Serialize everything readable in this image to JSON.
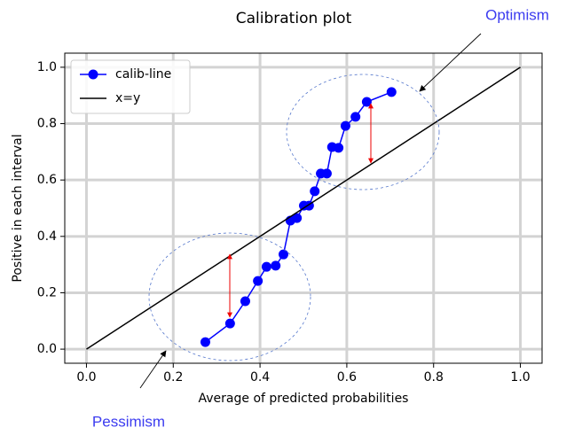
{
  "chart_data": {
    "type": "line",
    "title": "Calibration plot",
    "x_label": "Average of predicted probabilities",
    "y_label": "Positive in each interval",
    "xlim": [
      -0.05,
      1.05
    ],
    "ylim": [
      -0.05,
      1.05
    ],
    "xticks": [
      {
        "value": 0,
        "label": "0.0"
      },
      0.2,
      0.4,
      0.6,
      0.8,
      {
        "value": 1,
        "label": "1.0"
      }
    ],
    "yticks": [
      {
        "value": 0,
        "label": "0.0"
      },
      0.2,
      0.4,
      0.6,
      0.8,
      {
        "value": 1,
        "label": "1.0"
      }
    ],
    "grid": true,
    "legend": "upper left",
    "series": [
      {
        "name": "calib-line",
        "color": "#0000ff",
        "marker": "circle",
        "x": [
          0.274,
          0.331,
          0.366,
          0.395,
          0.415,
          0.436,
          0.454,
          0.47,
          0.485,
          0.501,
          0.513,
          0.526,
          0.54,
          0.554,
          0.566,
          0.581,
          0.597,
          0.62,
          0.646,
          0.703
        ],
        "values": [
          0.025,
          0.091,
          0.17,
          0.242,
          0.292,
          0.296,
          0.336,
          0.456,
          0.465,
          0.509,
          0.509,
          0.56,
          0.623,
          0.623,
          0.717,
          0.714,
          0.792,
          0.824,
          0.877,
          0.912
        ]
      },
      {
        "name": "x=y",
        "color": "#000000",
        "x": [
          0,
          1
        ],
        "values": [
          0,
          1
        ]
      }
    ],
    "annotations": [
      {
        "text": "Optimism"
      },
      {
        "text": "Pessimism"
      }
    ]
  }
}
